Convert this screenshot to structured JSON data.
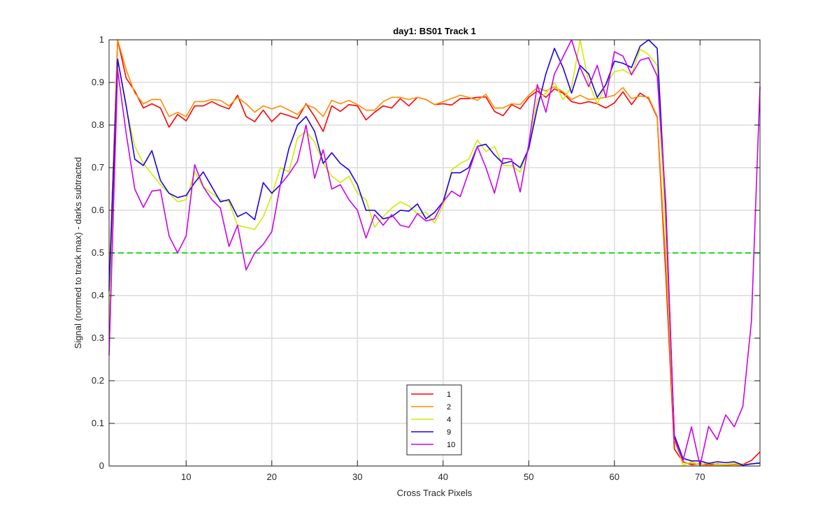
{
  "chart_data": {
    "type": "line",
    "title": "day1: BS01  Track 1",
    "xlabel": "Cross Track Pixels",
    "ylabel": "Signal (normed to track max) - darks subtracted",
    "xlim": [
      1,
      77
    ],
    "ylim": [
      0,
      1
    ],
    "xticks": [
      10,
      20,
      30,
      40,
      50,
      60,
      70
    ],
    "yticks": [
      0,
      0.1,
      0.2,
      0.3,
      0.4,
      0.5,
      0.6,
      0.7,
      0.8,
      0.9,
      1
    ],
    "ytick_labels": [
      "0",
      "0.1",
      "0.2",
      "0.3",
      "0.4",
      "0.5",
      "0.6",
      "0.7",
      "0.8",
      "0.9",
      "1"
    ],
    "grid": true,
    "legend_position": "bottom-center",
    "reference_line": {
      "y": 0.5,
      "color": "#22dd22",
      "style": "dashed"
    },
    "x": [
      1,
      2,
      3,
      4,
      5,
      6,
      7,
      8,
      9,
      10,
      11,
      12,
      13,
      14,
      15,
      16,
      17,
      18,
      19,
      20,
      21,
      22,
      23,
      24,
      25,
      26,
      27,
      28,
      29,
      30,
      31,
      32,
      33,
      34,
      35,
      36,
      37,
      38,
      39,
      40,
      41,
      42,
      43,
      44,
      45,
      46,
      47,
      48,
      49,
      50,
      51,
      52,
      53,
      54,
      55,
      56,
      57,
      58,
      59,
      60,
      61,
      62,
      63,
      64,
      65,
      66,
      67,
      68,
      69,
      70,
      71,
      72,
      73,
      74,
      75,
      76,
      77
    ],
    "series": [
      {
        "name": "1",
        "color": "#ff0000",
        "values": [
          0.42,
          1.0,
          0.91,
          0.88,
          0.84,
          0.85,
          0.84,
          0.795,
          0.825,
          0.81,
          0.845,
          0.845,
          0.855,
          0.845,
          0.838,
          0.87,
          0.82,
          0.808,
          0.835,
          0.808,
          0.828,
          0.822,
          0.815,
          0.85,
          0.82,
          0.785,
          0.845,
          0.832,
          0.848,
          0.845,
          0.812,
          0.83,
          0.845,
          0.84,
          0.862,
          0.845,
          0.865,
          0.86,
          0.848,
          0.85,
          0.847,
          0.862,
          0.862,
          0.865,
          0.866,
          0.832,
          0.822,
          0.848,
          0.838,
          0.865,
          0.88,
          0.865,
          0.885,
          0.875,
          0.855,
          0.85,
          0.855,
          0.85,
          0.84,
          0.852,
          0.878,
          0.848,
          0.875,
          0.862,
          0.818,
          0.45,
          0.04,
          0.01,
          0.003,
          0.005,
          0.003,
          0.005,
          0.003,
          0.005,
          0.004,
          0.013,
          0.033
        ]
      },
      {
        "name": "2",
        "color": "#ff8c00",
        "values": [
          0.43,
          1.0,
          0.93,
          0.875,
          0.85,
          0.86,
          0.86,
          0.82,
          0.83,
          0.82,
          0.855,
          0.855,
          0.86,
          0.858,
          0.845,
          0.865,
          0.85,
          0.83,
          0.845,
          0.838,
          0.845,
          0.835,
          0.825,
          0.848,
          0.84,
          0.82,
          0.858,
          0.85,
          0.858,
          0.848,
          0.835,
          0.835,
          0.855,
          0.865,
          0.865,
          0.86,
          0.865,
          0.86,
          0.848,
          0.855,
          0.862,
          0.87,
          0.865,
          0.858,
          0.872,
          0.84,
          0.84,
          0.85,
          0.848,
          0.87,
          0.888,
          0.88,
          0.89,
          0.878,
          0.86,
          0.87,
          0.86,
          0.862,
          0.865,
          0.87,
          0.888,
          0.862,
          0.868,
          0.865,
          0.82,
          0.48,
          0.06,
          0.008,
          0.006,
          0.003,
          0.002,
          0.003,
          0.002,
          0.003,
          0.002,
          0.005,
          0.007
        ]
      },
      {
        "name": "4",
        "color": "#ccee00",
        "values": [
          0.3,
          0.955,
          0.84,
          0.75,
          0.71,
          0.685,
          0.66,
          0.64,
          0.62,
          0.625,
          0.69,
          0.655,
          0.64,
          0.625,
          0.62,
          0.565,
          0.56,
          0.555,
          0.585,
          0.635,
          0.7,
          0.69,
          0.77,
          0.785,
          0.76,
          0.71,
          0.68,
          0.665,
          0.68,
          0.64,
          0.625,
          0.56,
          0.585,
          0.605,
          0.62,
          0.61,
          0.592,
          0.595,
          0.57,
          0.61,
          0.695,
          0.71,
          0.72,
          0.765,
          0.738,
          0.75,
          0.705,
          0.705,
          0.69,
          0.745,
          0.86,
          0.875,
          0.9,
          0.86,
          0.89,
          1.0,
          0.9,
          0.85,
          0.895,
          0.925,
          0.93,
          0.918,
          0.978,
          0.965,
          0.94,
          0.55,
          0.07,
          0.001,
          0.01,
          0.003,
          0.008,
          0.004,
          0.004,
          0.006,
          0.004,
          0.005,
          0.006
        ]
      },
      {
        "name": "9",
        "color": "#1a00ee",
        "values": [
          0.41,
          0.955,
          0.845,
          0.72,
          0.705,
          0.74,
          0.67,
          0.64,
          0.63,
          0.635,
          0.665,
          0.69,
          0.655,
          0.62,
          0.625,
          0.585,
          0.595,
          0.578,
          0.665,
          0.64,
          0.66,
          0.745,
          0.8,
          0.82,
          0.785,
          0.71,
          0.735,
          0.71,
          0.695,
          0.66,
          0.6,
          0.6,
          0.58,
          0.585,
          0.6,
          0.598,
          0.615,
          0.58,
          0.595,
          0.62,
          0.688,
          0.688,
          0.7,
          0.75,
          0.755,
          0.73,
          0.71,
          0.715,
          0.7,
          0.745,
          0.84,
          0.92,
          0.98,
          0.935,
          0.875,
          0.94,
          0.92,
          0.865,
          0.895,
          0.95,
          0.945,
          0.935,
          0.985,
          1.0,
          0.98,
          0.6,
          0.072,
          0.018,
          0.012,
          0.012,
          0.006,
          0.01,
          0.008,
          0.01,
          0.002,
          0.005,
          0.007
        ]
      },
      {
        "name": "10",
        "color": "#cc00ee",
        "values": [
          0.26,
          0.93,
          0.78,
          0.65,
          0.607,
          0.645,
          0.648,
          0.54,
          0.5,
          0.54,
          0.707,
          0.655,
          0.625,
          0.605,
          0.515,
          0.565,
          0.46,
          0.5,
          0.52,
          0.55,
          0.66,
          0.685,
          0.715,
          0.8,
          0.675,
          0.742,
          0.65,
          0.66,
          0.625,
          0.6,
          0.535,
          0.59,
          0.565,
          0.59,
          0.565,
          0.56,
          0.592,
          0.575,
          0.58,
          0.62,
          0.645,
          0.632,
          0.69,
          0.75,
          0.7,
          0.64,
          0.722,
          0.72,
          0.643,
          0.755,
          0.895,
          0.83,
          0.92,
          0.96,
          1.0,
          0.935,
          0.89,
          0.94,
          0.865,
          0.972,
          0.962,
          0.918,
          0.952,
          0.958,
          0.915,
          0.62,
          0.065,
          0.012,
          0.092,
          0.0,
          0.093,
          0.062,
          0.12,
          0.092,
          0.14,
          0.34,
          0.89
        ]
      }
    ]
  }
}
